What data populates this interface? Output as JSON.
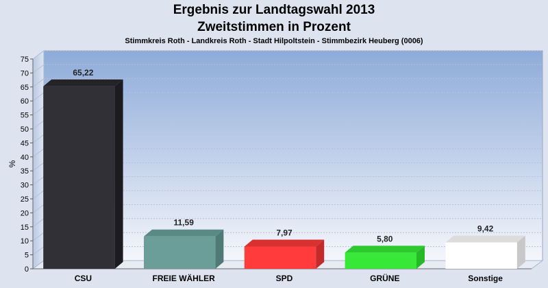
{
  "header": {
    "title": "Ergebnis zur Landtagswahl 2013",
    "subtitle": "Zweitstimmen in Prozent",
    "caption": "Stimmkreis Roth - Landkreis Roth - Stadt Hilpoltstein - Stimmbezirk Heuberg (0006)"
  },
  "chart_data": {
    "type": "bar",
    "title": "Ergebnis zur Landtagswahl 2013",
    "subtitle": "Zweitstimmen in Prozent",
    "caption": "Stimmkreis Roth - Landkreis Roth - Stadt Hilpoltstein - Stimmbezirk Heuberg (0006)",
    "xlabel": "",
    "ylabel": "%",
    "ylim": [
      0,
      75
    ],
    "yticks": [
      0,
      5,
      10,
      15,
      20,
      25,
      30,
      35,
      40,
      45,
      50,
      55,
      60,
      65,
      70,
      75
    ],
    "grid": true,
    "categories": [
      "CSU",
      "FREIE WÄHLER",
      "SPD",
      "GRÜNE",
      "Sonstige"
    ],
    "values": [
      65.22,
      11.59,
      7.97,
      5.8,
      9.42
    ],
    "value_labels": [
      "65,22",
      "11,59",
      "7,97",
      "5,80",
      "9,42"
    ],
    "colors": [
      "#303036",
      "#6b9e98",
      "#ff3b3b",
      "#38e838",
      "#ffffff"
    ],
    "side_colors": [
      "#1c1c20",
      "#4f7a75",
      "#c42a2a",
      "#26b826",
      "#c8c8c8"
    ],
    "top_colors": [
      "#232328",
      "#5a8a84",
      "#d93030",
      "#2ec92e",
      "#dcdcdc"
    ]
  }
}
